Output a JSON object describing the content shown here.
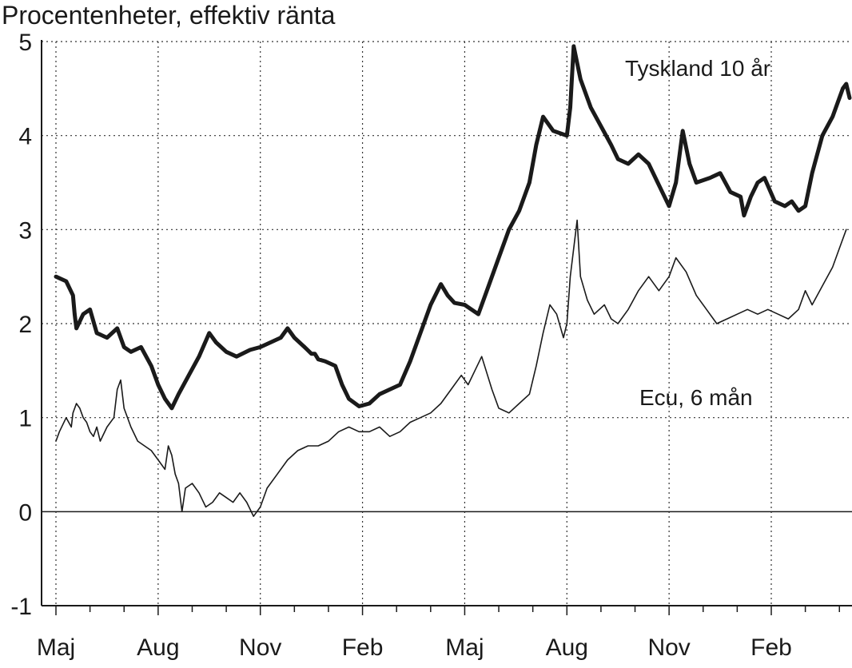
{
  "chart_data": {
    "type": "line",
    "title": "Procentenheter, effektiv ränta",
    "xlabel": "",
    "ylabel": "",
    "ylim": [
      -1,
      5
    ],
    "yticks": [
      -1,
      0,
      1,
      2,
      3,
      4,
      5
    ],
    "xlim": [
      0,
      23
    ],
    "x_tick_labels": [
      {
        "month": 0,
        "label": "Maj"
      },
      {
        "month": 3,
        "label": "Aug"
      },
      {
        "month": 6,
        "label": "Nov"
      },
      {
        "month": 9,
        "label": "Feb"
      },
      {
        "month": 12,
        "label": "Maj"
      },
      {
        "month": 15,
        "label": "Aug"
      },
      {
        "month": 18,
        "label": "Nov"
      },
      {
        "month": 21,
        "label": "Feb"
      }
    ],
    "grid": true,
    "legend": "inline labels",
    "series": [
      {
        "name": "Tyskland 10 år",
        "color": "#1a1a1a",
        "points": [
          [
            0,
            2.5
          ],
          [
            0.3,
            2.45
          ],
          [
            0.5,
            2.3
          ],
          [
            0.55,
            2.1
          ],
          [
            0.6,
            1.95
          ],
          [
            0.8,
            2.1
          ],
          [
            1.0,
            2.15
          ],
          [
            1.2,
            1.9
          ],
          [
            1.5,
            1.85
          ],
          [
            1.8,
            1.95
          ],
          [
            2.0,
            1.75
          ],
          [
            2.2,
            1.7
          ],
          [
            2.5,
            1.75
          ],
          [
            2.8,
            1.55
          ],
          [
            3.0,
            1.35
          ],
          [
            3.2,
            1.2
          ],
          [
            3.4,
            1.1
          ],
          [
            3.6,
            1.25
          ],
          [
            3.9,
            1.45
          ],
          [
            4.2,
            1.65
          ],
          [
            4.5,
            1.9
          ],
          [
            4.7,
            1.8
          ],
          [
            5.0,
            1.7
          ],
          [
            5.3,
            1.65
          ],
          [
            5.7,
            1.72
          ],
          [
            6.0,
            1.75
          ],
          [
            6.3,
            1.8
          ],
          [
            6.6,
            1.85
          ],
          [
            6.8,
            1.95
          ],
          [
            7.0,
            1.85
          ],
          [
            7.3,
            1.75
          ],
          [
            7.5,
            1.68
          ],
          [
            7.6,
            1.68
          ],
          [
            7.7,
            1.62
          ],
          [
            7.9,
            1.6
          ],
          [
            8.2,
            1.55
          ],
          [
            8.4,
            1.35
          ],
          [
            8.6,
            1.2
          ],
          [
            8.9,
            1.12
          ],
          [
            9.2,
            1.15
          ],
          [
            9.5,
            1.25
          ],
          [
            9.8,
            1.3
          ],
          [
            10.1,
            1.35
          ],
          [
            10.4,
            1.6
          ],
          [
            10.7,
            1.9
          ],
          [
            11.0,
            2.2
          ],
          [
            11.3,
            2.42
          ],
          [
            11.5,
            2.3
          ],
          [
            11.7,
            2.22
          ],
          [
            12.0,
            2.2
          ],
          [
            12.4,
            2.1
          ],
          [
            12.7,
            2.4
          ],
          [
            13.0,
            2.7
          ],
          [
            13.3,
            3.0
          ],
          [
            13.6,
            3.2
          ],
          [
            13.9,
            3.5
          ],
          [
            14.1,
            3.9
          ],
          [
            14.3,
            4.2
          ],
          [
            14.6,
            4.05
          ],
          [
            15.0,
            4.0
          ],
          [
            15.1,
            4.3
          ],
          [
            15.2,
            4.95
          ],
          [
            15.4,
            4.6
          ],
          [
            15.7,
            4.3
          ],
          [
            16.0,
            4.1
          ],
          [
            16.3,
            3.9
          ],
          [
            16.5,
            3.75
          ],
          [
            16.8,
            3.7
          ],
          [
            17.1,
            3.8
          ],
          [
            17.4,
            3.7
          ],
          [
            17.8,
            3.4
          ],
          [
            18.0,
            3.25
          ],
          [
            18.2,
            3.5
          ],
          [
            18.4,
            4.05
          ],
          [
            18.6,
            3.7
          ],
          [
            18.8,
            3.5
          ],
          [
            19.2,
            3.55
          ],
          [
            19.5,
            3.6
          ],
          [
            19.8,
            3.4
          ],
          [
            20.1,
            3.35
          ],
          [
            20.2,
            3.15
          ],
          [
            20.4,
            3.35
          ],
          [
            20.6,
            3.5
          ],
          [
            20.8,
            3.55
          ],
          [
            21.1,
            3.3
          ],
          [
            21.4,
            3.25
          ],
          [
            21.6,
            3.3
          ],
          [
            21.8,
            3.2
          ],
          [
            22.0,
            3.25
          ],
          [
            22.2,
            3.6
          ],
          [
            22.5,
            4.0
          ],
          [
            22.8,
            4.2
          ],
          [
            23.0,
            4.4
          ],
          [
            23.1,
            4.5
          ],
          [
            23.2,
            4.55
          ],
          [
            23.3,
            4.4
          ]
        ]
      },
      {
        "name": "Ecu, 6 mån",
        "color": "#1a1a1a",
        "points": [
          [
            0,
            0.75
          ],
          [
            0.1,
            0.85
          ],
          [
            0.3,
            1.0
          ],
          [
            0.45,
            0.9
          ],
          [
            0.5,
            1.05
          ],
          [
            0.6,
            1.15
          ],
          [
            0.7,
            1.1
          ],
          [
            0.8,
            1.0
          ],
          [
            0.9,
            0.95
          ],
          [
            1.0,
            0.85
          ],
          [
            1.1,
            0.8
          ],
          [
            1.2,
            0.9
          ],
          [
            1.3,
            0.75
          ],
          [
            1.5,
            0.9
          ],
          [
            1.7,
            1.0
          ],
          [
            1.8,
            1.3
          ],
          [
            1.9,
            1.4
          ],
          [
            2.0,
            1.1
          ],
          [
            2.2,
            0.9
          ],
          [
            2.4,
            0.75
          ],
          [
            2.6,
            0.7
          ],
          [
            2.8,
            0.65
          ],
          [
            3.0,
            0.55
          ],
          [
            3.2,
            0.45
          ],
          [
            3.3,
            0.7
          ],
          [
            3.4,
            0.6
          ],
          [
            3.5,
            0.4
          ],
          [
            3.6,
            0.3
          ],
          [
            3.7,
            0.0
          ],
          [
            3.8,
            0.25
          ],
          [
            4.0,
            0.3
          ],
          [
            4.2,
            0.2
          ],
          [
            4.4,
            0.05
          ],
          [
            4.6,
            0.1
          ],
          [
            4.8,
            0.2
          ],
          [
            5.0,
            0.15
          ],
          [
            5.2,
            0.1
          ],
          [
            5.4,
            0.2
          ],
          [
            5.6,
            0.1
          ],
          [
            5.8,
            -0.05
          ],
          [
            6.0,
            0.05
          ],
          [
            6.2,
            0.25
          ],
          [
            6.5,
            0.4
          ],
          [
            6.8,
            0.55
          ],
          [
            7.1,
            0.65
          ],
          [
            7.4,
            0.7
          ],
          [
            7.7,
            0.7
          ],
          [
            8.0,
            0.75
          ],
          [
            8.3,
            0.85
          ],
          [
            8.6,
            0.9
          ],
          [
            8.9,
            0.85
          ],
          [
            9.2,
            0.85
          ],
          [
            9.5,
            0.9
          ],
          [
            9.8,
            0.8
          ],
          [
            10.1,
            0.85
          ],
          [
            10.4,
            0.95
          ],
          [
            10.7,
            1.0
          ],
          [
            11.0,
            1.05
          ],
          [
            11.3,
            1.15
          ],
          [
            11.6,
            1.3
          ],
          [
            11.9,
            1.45
          ],
          [
            12.1,
            1.35
          ],
          [
            12.3,
            1.5
          ],
          [
            12.5,
            1.65
          ],
          [
            12.8,
            1.3
          ],
          [
            13.0,
            1.1
          ],
          [
            13.3,
            1.05
          ],
          [
            13.6,
            1.15
          ],
          [
            13.9,
            1.25
          ],
          [
            14.1,
            1.55
          ],
          [
            14.3,
            1.9
          ],
          [
            14.5,
            2.2
          ],
          [
            14.7,
            2.1
          ],
          [
            14.9,
            1.85
          ],
          [
            15.0,
            2.0
          ],
          [
            15.1,
            2.5
          ],
          [
            15.2,
            2.8
          ],
          [
            15.3,
            3.1
          ],
          [
            15.4,
            2.5
          ],
          [
            15.6,
            2.25
          ],
          [
            15.8,
            2.1
          ],
          [
            16.1,
            2.2
          ],
          [
            16.3,
            2.05
          ],
          [
            16.5,
            2.0
          ],
          [
            16.8,
            2.15
          ],
          [
            17.1,
            2.35
          ],
          [
            17.4,
            2.5
          ],
          [
            17.7,
            2.35
          ],
          [
            18.0,
            2.5
          ],
          [
            18.2,
            2.7
          ],
          [
            18.5,
            2.55
          ],
          [
            18.8,
            2.3
          ],
          [
            19.1,
            2.15
          ],
          [
            19.4,
            2.0
          ],
          [
            19.7,
            2.05
          ],
          [
            20.0,
            2.1
          ],
          [
            20.3,
            2.15
          ],
          [
            20.6,
            2.1
          ],
          [
            20.9,
            2.15
          ],
          [
            21.2,
            2.1
          ],
          [
            21.5,
            2.05
          ],
          [
            21.8,
            2.15
          ],
          [
            22.0,
            2.35
          ],
          [
            22.2,
            2.2
          ],
          [
            22.5,
            2.4
          ],
          [
            22.8,
            2.6
          ],
          [
            23.0,
            2.8
          ],
          [
            23.2,
            3.0
          ]
        ]
      }
    ]
  },
  "annotations": {
    "series_label_1": "Tyskland 10 år",
    "series_label_2": "Ecu, 6 mån"
  }
}
